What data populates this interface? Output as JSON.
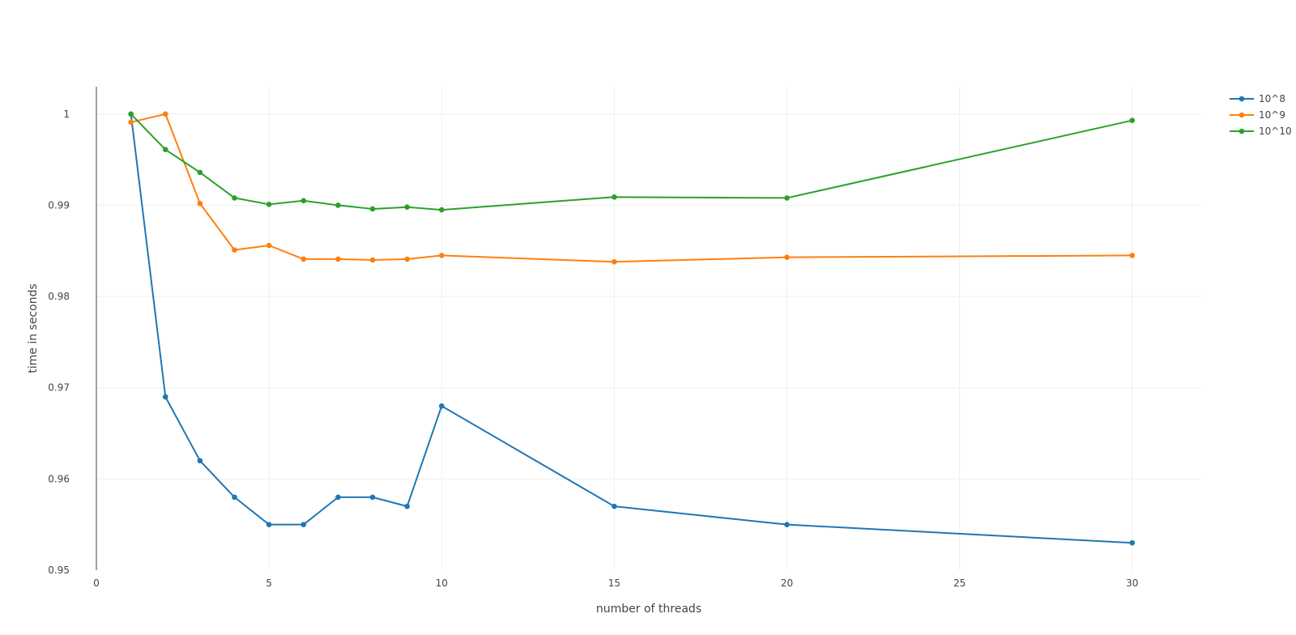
{
  "chart_data": {
    "type": "line",
    "xlabel": "number of threads",
    "ylabel": "time in seconds",
    "xlim": [
      0,
      32
    ],
    "ylim": [
      0.95,
      1.003
    ],
    "x_ticks": [
      0,
      5,
      10,
      15,
      20,
      25,
      30
    ],
    "y_ticks": [
      0.95,
      0.96,
      0.97,
      0.98,
      0.99,
      1
    ],
    "x_tick_labels": [
      "0",
      "5",
      "10",
      "15",
      "20",
      "25",
      "30"
    ],
    "y_tick_labels": [
      "0.95",
      "0.96",
      "0.97",
      "0.98",
      "0.99",
      "1"
    ],
    "grid": true,
    "legend_position": "top-right",
    "x": [
      1,
      2,
      3,
      4,
      5,
      6,
      7,
      8,
      9,
      10,
      15,
      20,
      30
    ],
    "series": [
      {
        "name": "10^8",
        "color": "#1f77b4",
        "values": [
          1.0,
          0.969,
          0.962,
          0.958,
          0.955,
          0.955,
          0.958,
          0.958,
          0.957,
          0.968,
          0.957,
          0.955,
          0.953
        ]
      },
      {
        "name": "10^9",
        "color": "#ff7f0e",
        "values": [
          0.9991,
          1.0,
          0.9902,
          0.9851,
          0.9856,
          0.9841,
          0.9841,
          0.984,
          0.9841,
          0.9845,
          0.9838,
          0.9843,
          0.9845
        ]
      },
      {
        "name": "10^10",
        "color": "#2ca02c",
        "values": [
          1.0,
          0.9961,
          0.9936,
          0.9908,
          0.9901,
          0.9905,
          0.99,
          0.9896,
          0.9898,
          0.9895,
          0.9909,
          0.9908,
          0.9993
        ]
      }
    ]
  }
}
